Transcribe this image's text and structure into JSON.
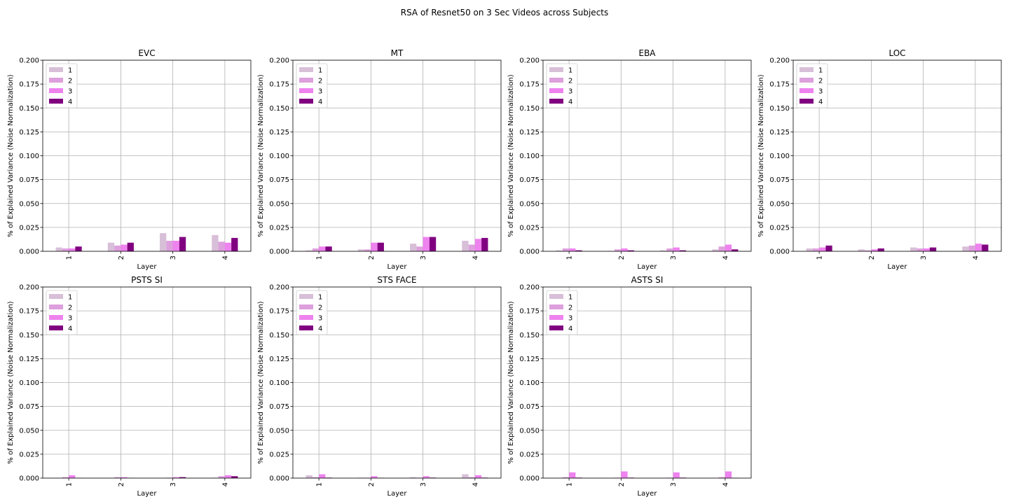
{
  "figure": {
    "title": "RSA of Resnet50 on 3 Sec Videos across Subjects"
  },
  "chart_data": [
    {
      "type": "bar",
      "title": "EVC",
      "xlabel": "Layer",
      "ylabel": "% of Explained Variance (Noise Normalization)",
      "categories": [
        "1",
        "2",
        "3",
        "4"
      ],
      "ylim": [
        0,
        0.2
      ],
      "yticks": [
        "0.000",
        "0.025",
        "0.050",
        "0.075",
        "0.100",
        "0.125",
        "0.150",
        "0.175",
        "0.200"
      ],
      "grid": true,
      "legend": "top-left",
      "series": [
        {
          "name": "1",
          "color": "#d8bfd8",
          "values": [
            0.004,
            0.009,
            0.019,
            0.017
          ]
        },
        {
          "name": "2",
          "color": "#dda0dd",
          "values": [
            0.003,
            0.006,
            0.011,
            0.01
          ]
        },
        {
          "name": "3",
          "color": "#ee82ee",
          "values": [
            0.003,
            0.007,
            0.011,
            0.009
          ]
        },
        {
          "name": "4",
          "color": "#800080",
          "values": [
            0.005,
            0.009,
            0.015,
            0.014
          ]
        }
      ]
    },
    {
      "type": "bar",
      "title": "MT",
      "xlabel": "Layer",
      "ylabel": "% of Explained Variance (Noise Normalization)",
      "categories": [
        "1",
        "2",
        "3",
        "4"
      ],
      "ylim": [
        0,
        0.2
      ],
      "yticks": [
        "0.000",
        "0.025",
        "0.050",
        "0.075",
        "0.100",
        "0.125",
        "0.150",
        "0.175",
        "0.200"
      ],
      "grid": true,
      "legend": "top-left",
      "series": [
        {
          "name": "1",
          "color": "#d8bfd8",
          "values": [
            0.001,
            0.002,
            0.008,
            0.011
          ]
        },
        {
          "name": "2",
          "color": "#dda0dd",
          "values": [
            0.003,
            0.002,
            0.005,
            0.007
          ]
        },
        {
          "name": "3",
          "color": "#ee82ee",
          "values": [
            0.005,
            0.009,
            0.015,
            0.013
          ]
        },
        {
          "name": "4",
          "color": "#800080",
          "values": [
            0.005,
            0.009,
            0.015,
            0.014
          ]
        }
      ]
    },
    {
      "type": "bar",
      "title": "EBA",
      "xlabel": "Layer",
      "ylabel": "% of Explained Variance (Noise Normalization)",
      "categories": [
        "1",
        "2",
        "3",
        "4"
      ],
      "ylim": [
        0,
        0.2
      ],
      "yticks": [
        "0.000",
        "0.025",
        "0.050",
        "0.075",
        "0.100",
        "0.125",
        "0.150",
        "0.175",
        "0.200"
      ],
      "grid": true,
      "legend": "top-left",
      "series": [
        {
          "name": "1",
          "color": "#d8bfd8",
          "values": [
            0.001,
            0.0005,
            0.001,
            0.002
          ]
        },
        {
          "name": "2",
          "color": "#dda0dd",
          "values": [
            0.003,
            0.002,
            0.003,
            0.005
          ]
        },
        {
          "name": "3",
          "color": "#ee82ee",
          "values": [
            0.003,
            0.003,
            0.004,
            0.007
          ]
        },
        {
          "name": "4",
          "color": "#800080",
          "values": [
            0.001,
            0.001,
            0.001,
            0.002
          ]
        }
      ]
    },
    {
      "type": "bar",
      "title": "LOC",
      "xlabel": "Layer",
      "ylabel": "% of Explained Variance (Noise Normalization)",
      "categories": [
        "1",
        "2",
        "3",
        "4"
      ],
      "ylim": [
        0,
        0.2
      ],
      "yticks": [
        "0.000",
        "0.025",
        "0.050",
        "0.075",
        "0.100",
        "0.125",
        "0.150",
        "0.175",
        "0.200"
      ],
      "grid": true,
      "legend": "top-left",
      "series": [
        {
          "name": "1",
          "color": "#d8bfd8",
          "values": [
            0.003,
            0.002,
            0.004,
            0.005
          ]
        },
        {
          "name": "2",
          "color": "#dda0dd",
          "values": [
            0.003,
            0.001,
            0.003,
            0.006
          ]
        },
        {
          "name": "3",
          "color": "#ee82ee",
          "values": [
            0.004,
            0.002,
            0.003,
            0.008
          ]
        },
        {
          "name": "4",
          "color": "#800080",
          "values": [
            0.006,
            0.003,
            0.004,
            0.007
          ]
        }
      ]
    },
    {
      "type": "bar",
      "title": "PSTS SI",
      "xlabel": "Layer",
      "ylabel": "% of Explained Variance (Noise Normalization)",
      "categories": [
        "1",
        "2",
        "3",
        "4"
      ],
      "ylim": [
        0,
        0.2
      ],
      "yticks": [
        "0.000",
        "0.025",
        "0.050",
        "0.075",
        "0.100",
        "0.125",
        "0.150",
        "0.175",
        "0.200"
      ],
      "grid": true,
      "legend": "top-left",
      "series": [
        {
          "name": "1",
          "color": "#d8bfd8",
          "values": [
            0.0003,
            0.0002,
            0.0002,
            0.0005
          ]
        },
        {
          "name": "2",
          "color": "#dda0dd",
          "values": [
            0.001,
            0.001,
            0.0005,
            0.002
          ]
        },
        {
          "name": "3",
          "color": "#ee82ee",
          "values": [
            0.003,
            0.001,
            0.001,
            0.003
          ]
        },
        {
          "name": "4",
          "color": "#800080",
          "values": [
            0.0002,
            0.0002,
            0.001,
            0.002
          ]
        }
      ]
    },
    {
      "type": "bar",
      "title": "STS FACE",
      "xlabel": "Layer",
      "ylabel": "% of Explained Variance (Noise Normalization)",
      "categories": [
        "1",
        "2",
        "3",
        "4"
      ],
      "ylim": [
        0,
        0.2
      ],
      "yticks": [
        "0.000",
        "0.025",
        "0.050",
        "0.075",
        "0.100",
        "0.125",
        "0.150",
        "0.175",
        "0.200"
      ],
      "grid": true,
      "legend": "top-left",
      "series": [
        {
          "name": "1",
          "color": "#d8bfd8",
          "values": [
            0.003,
            0.0005,
            0.001,
            0.004
          ]
        },
        {
          "name": "2",
          "color": "#dda0dd",
          "values": [
            0.001,
            0.0005,
            0.0005,
            0.001
          ]
        },
        {
          "name": "3",
          "color": "#ee82ee",
          "values": [
            0.004,
            0.002,
            0.002,
            0.003
          ]
        },
        {
          "name": "4",
          "color": "#800080",
          "values": [
            0.0005,
            0.0003,
            0.0005,
            0.0005
          ]
        }
      ]
    },
    {
      "type": "bar",
      "title": "ASTS SI",
      "xlabel": "Layer",
      "ylabel": "% of Explained Variance (Noise Normalization)",
      "categories": [
        "1",
        "2",
        "3",
        "4"
      ],
      "ylim": [
        0,
        0.2
      ],
      "yticks": [
        "0.000",
        "0.025",
        "0.050",
        "0.075",
        "0.100",
        "0.125",
        "0.150",
        "0.175",
        "0.200"
      ],
      "grid": true,
      "legend": "top-left",
      "series": [
        {
          "name": "1",
          "color": "#d8bfd8",
          "values": [
            0.0003,
            0.0003,
            0.0003,
            0.0003
          ]
        },
        {
          "name": "2",
          "color": "#dda0dd",
          "values": [
            0.001,
            0.0005,
            0.0005,
            0.001
          ]
        },
        {
          "name": "3",
          "color": "#ee82ee",
          "values": [
            0.006,
            0.007,
            0.006,
            0.007
          ]
        },
        {
          "name": "4",
          "color": "#800080",
          "values": [
            0.0005,
            0.0005,
            0.0005,
            0.0003
          ]
        }
      ]
    }
  ]
}
